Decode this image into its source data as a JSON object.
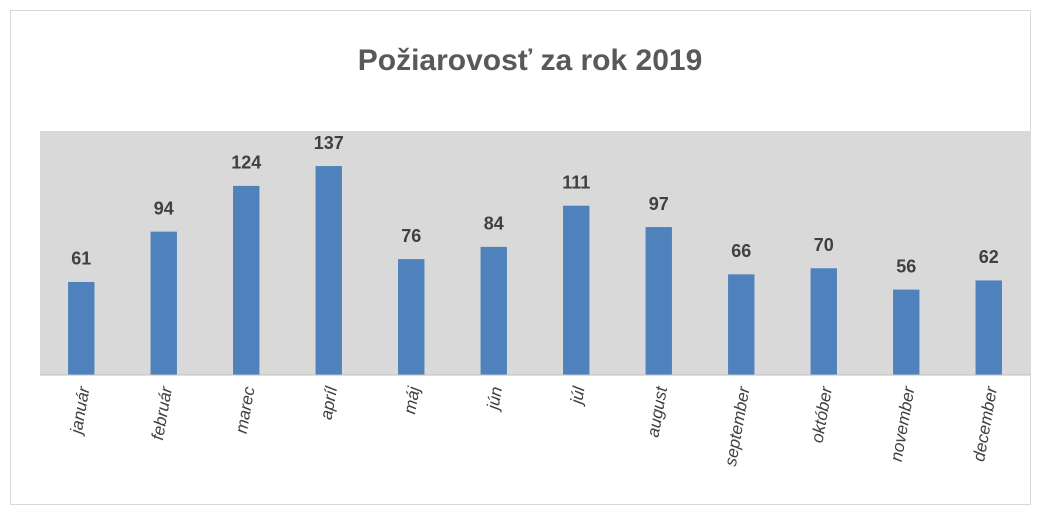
{
  "chart_data": {
    "type": "bar",
    "title": "Požiarovosť za rok 2019",
    "categories": [
      "január",
      "február",
      "marec",
      "apríl",
      "máj",
      "jún",
      "júl",
      "august",
      "september",
      "október",
      "november",
      "december"
    ],
    "values": [
      61,
      94,
      124,
      137,
      76,
      84,
      111,
      97,
      66,
      70,
      56,
      62
    ],
    "color": "#4f81bd",
    "plot_background": "#d9d9d9",
    "ylim": [
      0,
      160
    ]
  }
}
